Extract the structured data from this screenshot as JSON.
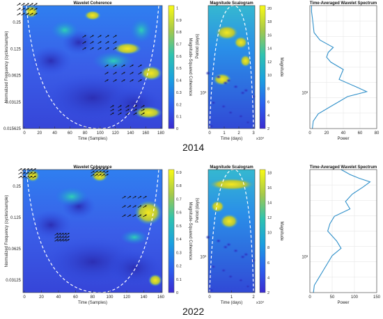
{
  "year_labels": [
    "2014",
    "2022"
  ],
  "chart_data": [
    {
      "type": "heatmap",
      "title": "Wavelet Coherence",
      "xlabel": "Time (Samples)",
      "ylabel": "Normalized Frequency (cycles/sample)",
      "xlim": [
        0,
        185
      ],
      "xticks": [
        "0",
        "20",
        "40",
        "60",
        "80",
        "100",
        "120",
        "140",
        "160",
        "180"
      ],
      "yticks": [
        "0.25",
        "0.125",
        "0.0625",
        "0.03125",
        "0.015625"
      ],
      "colorbar": {
        "label": "Magnitude-Squared Coherence",
        "ticks": [
          "0",
          "0.1",
          "0.2",
          "0.3",
          "0.4",
          "0.5",
          "0.6",
          "0.7",
          "0.8",
          "0.9",
          "1"
        ]
      },
      "cone_of_influence": true,
      "phase_arrows": true
    },
    {
      "type": "heatmap",
      "title": "Magnitude Scalogram",
      "xlabel": "Time (days)",
      "ylabel": "Period (days)",
      "xticks": [
        "0",
        "1",
        "2",
        "3"
      ],
      "x_exponent": "x10⁴",
      "yticks": [
        "10³"
      ],
      "colorbar": {
        "label": "Magnitude",
        "ticks": [
          "2",
          "4",
          "6",
          "8",
          "10",
          "12",
          "14",
          "16",
          "18",
          "20"
        ]
      },
      "cone_of_influence": true
    },
    {
      "type": "line",
      "title": "Time-Averaged Wavelet Spectrum",
      "xlabel": "Power",
      "xlim": [
        0,
        80
      ],
      "xticks": [
        "0",
        "20",
        "40",
        "60",
        "80"
      ],
      "yticks": [
        "10³"
      ],
      "series": [
        {
          "x": [
            3,
            4,
            10,
            25,
            35,
            45,
            68,
            55,
            35,
            40,
            25,
            20,
            22,
            28,
            12,
            5,
            4,
            3,
            2,
            2
          ],
          "y": [
            0,
            0.06,
            0.12,
            0.18,
            0.22,
            0.26,
            0.3,
            0.34,
            0.4,
            0.48,
            0.54,
            0.58,
            0.62,
            0.66,
            0.72,
            0.78,
            0.84,
            0.9,
            0.95,
            1.0
          ]
        }
      ]
    },
    {
      "type": "heatmap",
      "title": "Wavelet Coherence",
      "xlabel": "Time (Samples)",
      "ylabel": "Normalized Frequency (cycles/sample)",
      "xlim": [
        0,
        165
      ],
      "xticks": [
        "0",
        "20",
        "40",
        "60",
        "80",
        "100",
        "120",
        "140",
        "160"
      ],
      "yticks": [
        "0.25",
        "0.125",
        "0.0625",
        "0.03125"
      ],
      "colorbar": {
        "label": "Magnitude-Squared Coherence",
        "ticks": [
          "0",
          "0.1",
          "0.2",
          "0.3",
          "0.4",
          "0.5",
          "0.6",
          "0.7",
          "0.8",
          "0.9"
        ]
      },
      "cone_of_influence": true,
      "phase_arrows": true
    },
    {
      "type": "heatmap",
      "title": "Magnitude Scalogram",
      "xlabel": "Time (days)",
      "ylabel": "Period (days)",
      "xticks": [
        "0",
        "1",
        "2"
      ],
      "x_exponent": "x10⁴",
      "yticks": [
        "10³"
      ],
      "colorbar": {
        "label": "Magnitude",
        "ticks": [
          "2",
          "4",
          "6",
          "8",
          "10",
          "12",
          "14",
          "16",
          "18"
        ]
      },
      "cone_of_influence": true
    },
    {
      "type": "line",
      "title": "Time-Averaged Wavelet Spectrum",
      "xlabel": "Power",
      "xlim": [
        0,
        150
      ],
      "xticks": [
        "0",
        "50",
        "100",
        "150"
      ],
      "yticks": [
        "10³"
      ],
      "series": [
        {
          "x": [
            8,
            10,
            20,
            30,
            40,
            50,
            70,
            60,
            40,
            45,
            55,
            90,
            80,
            95,
            120,
            135,
            110,
            90,
            80,
            70
          ],
          "y": [
            0,
            0.06,
            0.12,
            0.18,
            0.24,
            0.3,
            0.36,
            0.42,
            0.5,
            0.56,
            0.62,
            0.68,
            0.74,
            0.8,
            0.86,
            0.9,
            0.93,
            0.96,
            0.98,
            1.0
          ]
        }
      ]
    }
  ]
}
